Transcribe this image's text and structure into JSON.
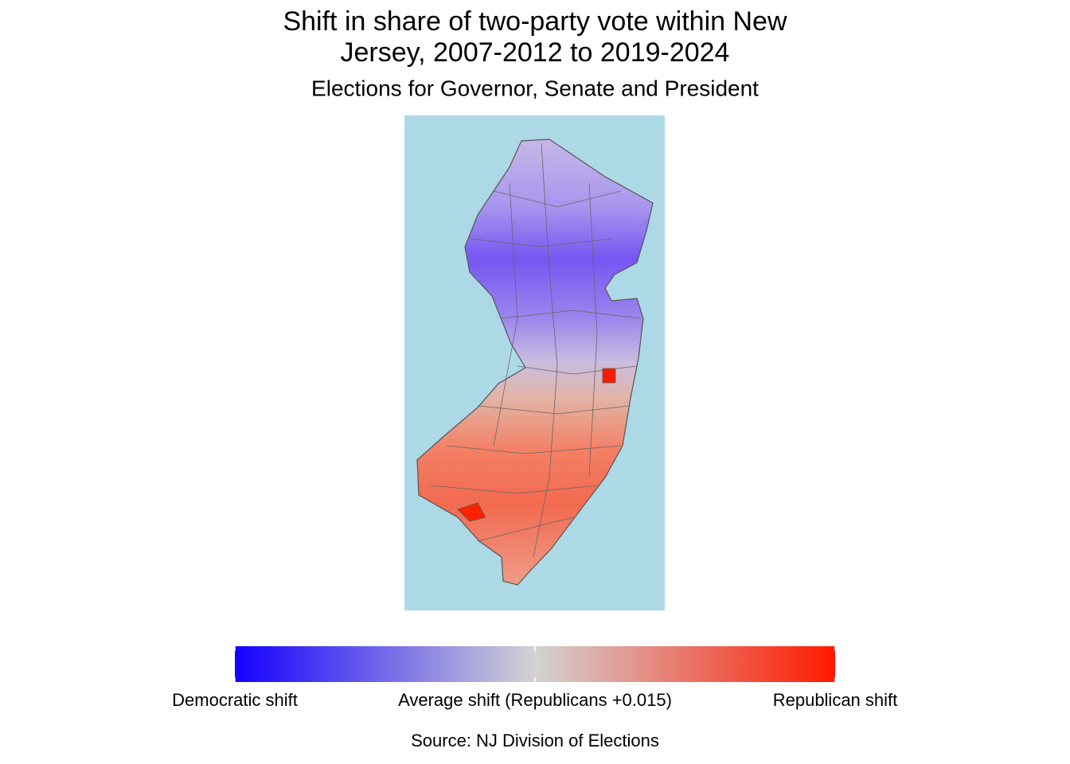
{
  "title_lines": [
    "Shift in share of two-party vote within New",
    "Jersey, 2007-2012 to 2019-2024"
  ],
  "subtitle": "Elections for Governor, Senate and President",
  "legend": {
    "colors": [
      "#1400ff",
      "#d3d3d3",
      "#ff1a00"
    ],
    "labels": [
      "Democratic shift",
      "Average shift (Republicans +0.015)",
      "Republican shift"
    ]
  },
  "source": "Source: NJ Division of Elections"
}
